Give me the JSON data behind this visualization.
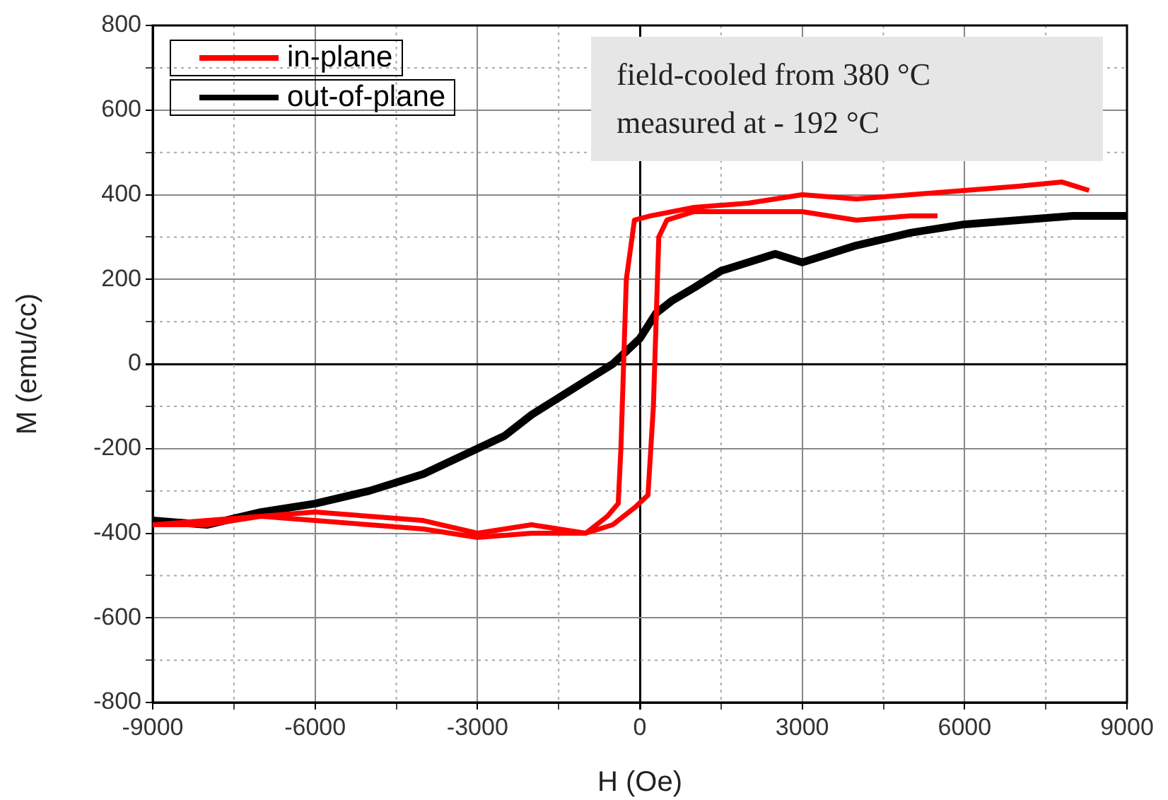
{
  "chart_data": {
    "type": "line",
    "xlabel": "H (Oe)",
    "ylabel": "M (emu/cc)",
    "annotations": [
      "field-cooled from 380 °C",
      "measured at - 192 °C"
    ],
    "xlim": [
      -9000,
      9000
    ],
    "ylim": [
      -800,
      800
    ],
    "xticks": [
      -9000,
      {
        "value": -7500,
        "label": null
      },
      -6000,
      {
        "value": -4500,
        "label": null
      },
      -3000,
      {
        "value": -1500,
        "label": null
      },
      0,
      {
        "value": 1500,
        "label": null
      },
      3000,
      {
        "value": 4500,
        "label": null
      },
      6000,
      {
        "value": 7500,
        "label": null
      },
      9000
    ],
    "yticks": [
      -800,
      {
        "value": -700,
        "label": null
      },
      -600,
      {
        "value": -500,
        "label": null
      },
      -400,
      {
        "value": -300,
        "label": null
      },
      -200,
      {
        "value": -100,
        "label": null
      },
      0,
      {
        "value": 100,
        "label": null
      },
      200,
      {
        "value": 300,
        "label": null
      },
      400,
      {
        "value": 500,
        "label": null
      },
      600,
      {
        "value": 700,
        "label": null
      },
      800
    ],
    "grid": true,
    "legend": "top left",
    "marker": "none",
    "line_style": "solid",
    "series": [
      {
        "name": "in-plane",
        "color": "#ff0000",
        "x": [
          8300,
          7800,
          7000,
          6000,
          5000,
          4000,
          3000,
          2000,
          1000,
          200,
          -100,
          -250,
          -300,
          -350,
          -400,
          -600,
          -1000,
          -2000,
          -3000,
          -4000,
          -5000,
          -6000,
          -7000,
          -8000,
          -9000,
          -8000,
          -7000,
          -6000,
          -5000,
          -4000,
          -3000,
          -2000,
          -1000,
          -500,
          -100,
          150,
          250,
          300,
          350,
          500,
          1000,
          2000,
          3000,
          4000,
          5000,
          5500
        ],
        "values": [
          410,
          430,
          420,
          410,
          400,
          390,
          400,
          380,
          370,
          350,
          340,
          200,
          0,
          -200,
          -330,
          -360,
          -400,
          -380,
          -400,
          -370,
          -360,
          -350,
          -360,
          -370,
          -380,
          -380,
          -360,
          -370,
          -380,
          -390,
          -410,
          -400,
          -400,
          -380,
          -340,
          -310,
          -100,
          100,
          300,
          340,
          360,
          360,
          360,
          340,
          350,
          350
        ]
      },
      {
        "name": "out-of-plane",
        "color": "#000000",
        "x": [
          -9000,
          -8000,
          -7000,
          -6000,
          -5000,
          -4000,
          -3000,
          -2500,
          -2000,
          -1500,
          -1000,
          -500,
          0,
          300,
          600,
          1000,
          1500,
          2000,
          2500,
          3000,
          3500,
          4000,
          5000,
          6000,
          7000,
          8000,
          9000
        ],
        "values": [
          -370,
          -380,
          -350,
          -330,
          -300,
          -260,
          -200,
          -170,
          -120,
          -80,
          -40,
          0,
          60,
          120,
          150,
          180,
          220,
          240,
          260,
          240,
          260,
          280,
          310,
          330,
          340,
          350,
          350
        ]
      }
    ]
  }
}
